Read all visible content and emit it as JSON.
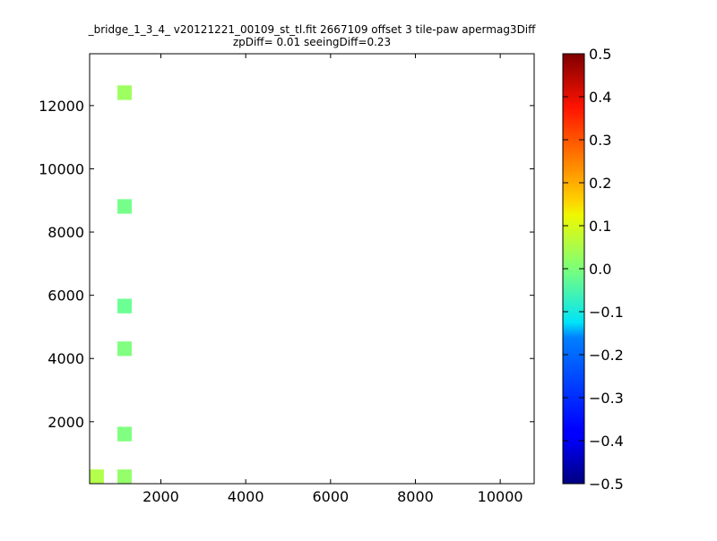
{
  "chart_data": {
    "type": "heatmap",
    "title_line1": "_bridge_1_3_4_ v20121221_00109_st_tl.fit 2667109 offset 3 tile-paw apermag3Diff",
    "title_line2": "zpDiff= 0.01 seeingDiff=0.23",
    "xlim": [
      320,
      10800
    ],
    "ylim": [
      40,
      13640
    ],
    "xticks": [
      2000,
      4000,
      6000,
      8000,
      10000
    ],
    "yticks": [
      2000,
      4000,
      6000,
      8000,
      10000,
      12000
    ],
    "xtick_labels": [
      "2000",
      "4000",
      "6000",
      "8000",
      "10000"
    ],
    "ytick_labels": [
      "2000",
      "4000",
      "6000",
      "8000",
      "10000",
      "12000"
    ],
    "cell_size": [
      328,
      450
    ],
    "colorbar": {
      "colormap": "jet",
      "range": [
        -0.5,
        0.5
      ],
      "ticks": [
        0.5,
        0.4,
        0.3,
        0.2,
        0.1,
        0.0,
        -0.1,
        -0.2,
        -0.3,
        -0.4,
        -0.5
      ],
      "tick_labels": [
        "0.5",
        "0.4",
        "0.3",
        "0.2",
        "0.1",
        "0.0",
        "−0.1",
        "−0.2",
        "−0.3",
        "−0.4",
        "−0.5"
      ]
    },
    "grid": false,
    "legend": "none",
    "cells": [
      {
        "x": 484,
        "y": 265,
        "v": 0.05
      },
      {
        "x": 1140,
        "y": 1615,
        "v": 0.0
      },
      {
        "x": 1140,
        "y": 265,
        "v": 0.02
      },
      {
        "x": 1140,
        "y": 4315,
        "v": 0.0
      },
      {
        "x": 1140,
        "y": 5665,
        "v": -0.02
      },
      {
        "x": 1140,
        "y": 8815,
        "v": -0.01
      },
      {
        "x": 1140,
        "y": 12415,
        "v": 0.03
      }
    ]
  }
}
